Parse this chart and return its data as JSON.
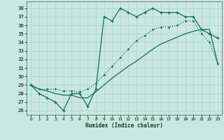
{
  "xlabel": "Humidex (Indice chaleur)",
  "xlim": [
    -0.5,
    23.5
  ],
  "ylim": [
    25.5,
    38.8
  ],
  "yticks": [
    26,
    27,
    28,
    29,
    30,
    31,
    32,
    33,
    34,
    35,
    36,
    37,
    38
  ],
  "xticks": [
    0,
    1,
    2,
    3,
    4,
    5,
    6,
    7,
    8,
    9,
    10,
    11,
    12,
    13,
    14,
    15,
    16,
    17,
    18,
    19,
    20,
    21,
    22,
    23
  ],
  "bg_color": "#c8e8e0",
  "grid_color": "#b0d8d0",
  "line_color": "#1a6a5a",
  "line1_x": [
    0,
    1,
    2,
    3,
    4,
    5,
    6,
    7,
    8,
    9,
    10,
    11,
    12,
    13,
    14,
    15,
    16,
    17,
    18,
    19,
    20,
    21,
    22,
    23
  ],
  "line1_y": [
    29,
    28,
    27.5,
    27,
    26,
    28,
    28,
    26.5,
    28.5,
    37,
    36.5,
    38,
    37.5,
    37,
    37.5,
    38,
    37.5,
    37.5,
    37.5,
    37,
    37,
    35.5,
    35,
    34.5
  ],
  "line2_x": [
    0,
    1,
    2,
    3,
    4,
    5,
    6,
    7,
    8,
    9,
    10,
    11,
    12,
    13,
    14,
    15,
    16,
    17,
    18,
    19,
    20,
    21,
    22,
    23
  ],
  "line2_y": [
    29,
    28.5,
    28.5,
    28.5,
    28.3,
    28.3,
    28.2,
    28.5,
    29.2,
    30.2,
    31.2,
    32.2,
    33.2,
    34.2,
    34.8,
    35.5,
    35.8,
    35.8,
    36.0,
    36.5,
    36.5,
    35.0,
    34.0,
    31.5
  ],
  "line3_x": [
    0,
    1,
    2,
    3,
    4,
    5,
    6,
    7,
    8,
    9,
    10,
    11,
    12,
    13,
    14,
    15,
    16,
    17,
    18,
    19,
    20,
    21,
    22,
    23
  ],
  "line3_y": [
    29,
    28.5,
    28.3,
    28.0,
    27.8,
    27.8,
    27.5,
    27.5,
    28.2,
    29.0,
    29.8,
    30.5,
    31.2,
    31.8,
    32.5,
    33.2,
    33.8,
    34.2,
    34.6,
    35.0,
    35.3,
    35.5,
    35.5,
    31.5
  ]
}
